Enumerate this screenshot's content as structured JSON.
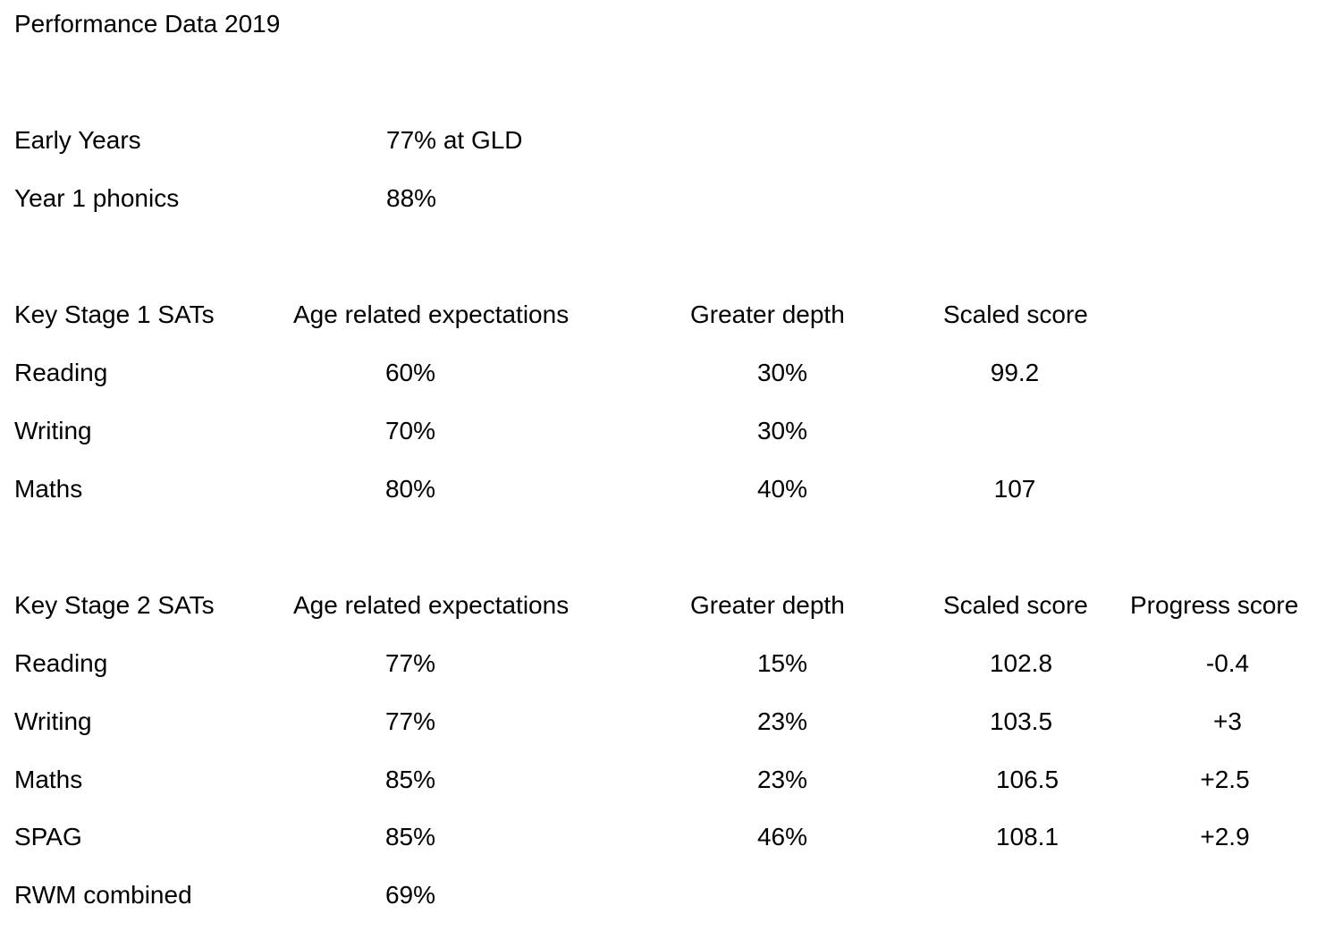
{
  "title": "Performance Data 2019",
  "early_years": {
    "label": "Early Years",
    "value": "77% at GLD"
  },
  "phonics": {
    "label": "Year 1 phonics",
    "value": "88%"
  },
  "ks1": {
    "headers": [
      "Key Stage 1 SATs",
      "Age related expectations",
      "Greater depth",
      "Scaled score"
    ],
    "rows": [
      {
        "subject": "Reading",
        "are": "60%",
        "gd": "30%",
        "scaled": "99.2"
      },
      {
        "subject": "Writing",
        "are": "70%",
        "gd": "30%",
        "scaled": ""
      },
      {
        "subject": "Maths",
        "are": "80%",
        "gd": "40%",
        "scaled": "107"
      }
    ]
  },
  "ks2": {
    "headers": [
      "Key Stage 2 SATs",
      "Age related expectations",
      "Greater depth",
      "Scaled score",
      "Progress score"
    ],
    "rows": [
      {
        "subject": "Reading",
        "are": "77%",
        "gd": "15%",
        "scaled": "102.8",
        "progress": "-0.4"
      },
      {
        "subject": "Writing",
        "are": "77%",
        "gd": "23%",
        "scaled": "103.5",
        "progress": "+3"
      },
      {
        "subject": "Maths",
        "are": "85%",
        "gd": "23%",
        "scaled": "106.5",
        "progress": "+2.5"
      },
      {
        "subject": "SPAG",
        "are": "85%",
        "gd": "46%",
        "scaled": "108.1",
        "progress": "+2.9"
      },
      {
        "subject": "RWM combined",
        "are": "69%",
        "gd": "",
        "scaled": "",
        "progress": ""
      }
    ]
  }
}
